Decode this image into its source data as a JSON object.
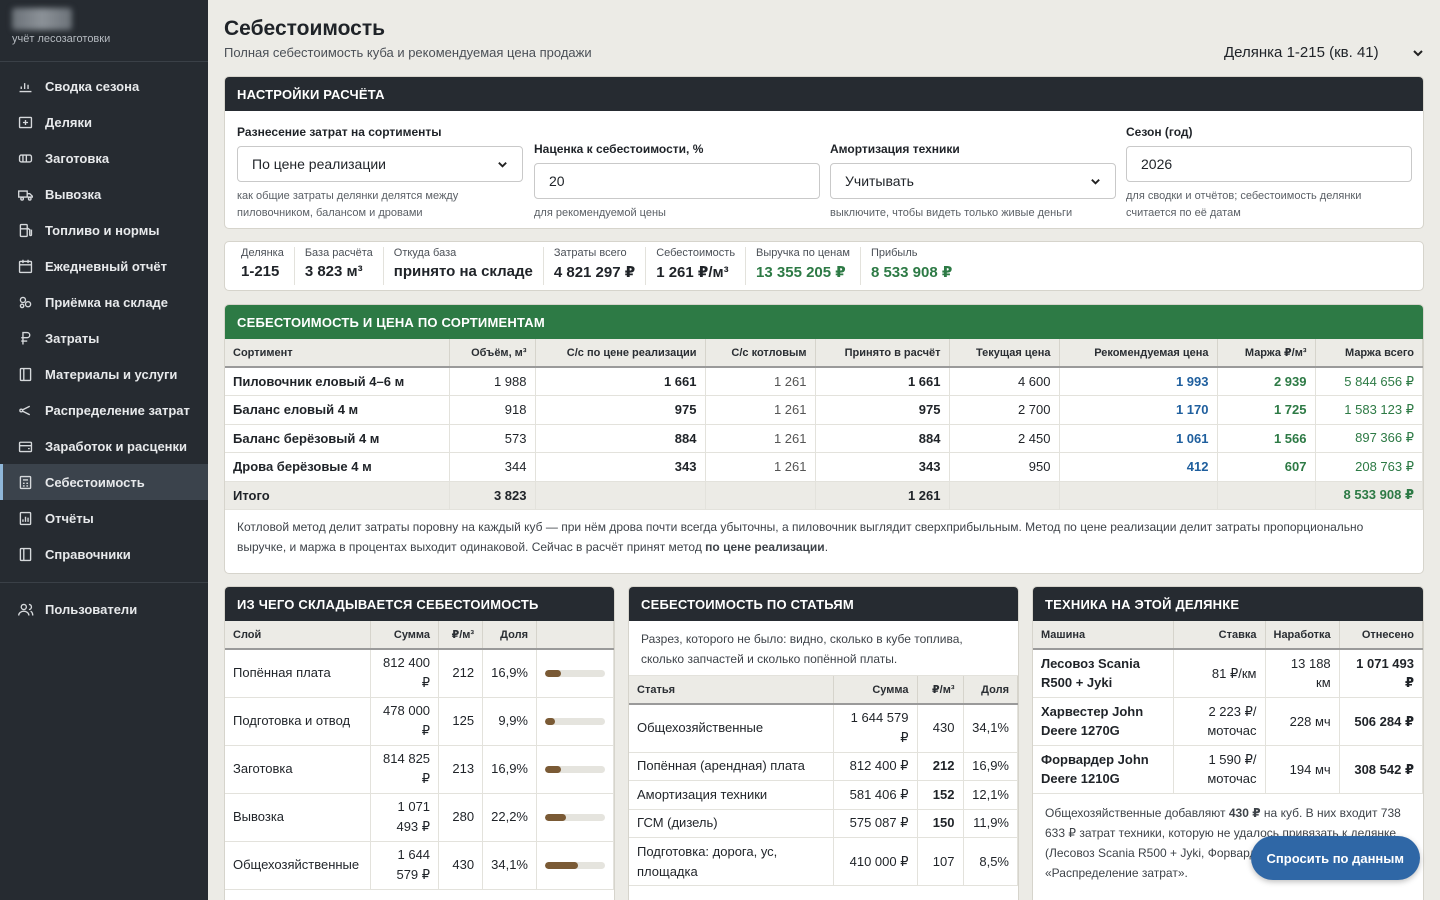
{
  "sidebar": {
    "brand_sub": "учёт лесозаготовки",
    "items": [
      {
        "label": "Сводка сезона",
        "icon": "chart-icon"
      },
      {
        "label": "Деляки",
        "icon": "plot-icon"
      },
      {
        "label": "Заготовка",
        "icon": "harvest-icon"
      },
      {
        "label": "Вывозка",
        "icon": "truck-icon"
      },
      {
        "label": "Топливо и нормы",
        "icon": "fuel-icon"
      },
      {
        "label": "Ежедневный отчёт",
        "icon": "calendar-icon"
      },
      {
        "label": "Приёмка на складе",
        "icon": "warehouse-icon"
      },
      {
        "label": "Затраты",
        "icon": "ruble-icon"
      },
      {
        "label": "Материалы и услуги",
        "icon": "book-icon"
      },
      {
        "label": "Распределение затрат",
        "icon": "share-icon"
      },
      {
        "label": "Заработок и расценки",
        "icon": "wallet-icon"
      },
      {
        "label": "Себестоимость",
        "icon": "calculator-icon"
      },
      {
        "label": "Отчёты",
        "icon": "report-icon"
      },
      {
        "label": "Справочники",
        "icon": "book-icon"
      }
    ],
    "users": "Пользователи"
  },
  "header": {
    "title": "Себестоимость",
    "subtitle": "Полная себестоимость куба и рекомендуемая цена продажи",
    "plot_select": "Делянка 1-215 (кв. 41)"
  },
  "settings": {
    "title": "НАСТРОЙКИ РАСЧЁТА",
    "alloc_label": "Разнесение затрат на сортименты",
    "alloc_value": "По цене реализации",
    "alloc_hint": "как общие затраты делянки делятся между пиловочником, балансом и дровами",
    "markup_label": "Наценка к себестоимости, %",
    "markup_value": "20",
    "markup_hint": "для рекомендуемой цены",
    "amort_label": "Амортизация техники",
    "amort_value": "Учитывать",
    "amort_hint": "выключите, чтобы видеть только живые деньги",
    "season_label": "Сезон (год)",
    "season_value": "2026",
    "season_hint": "для сводки и отчётов; себестоимость делянки считается по её датам"
  },
  "summary": [
    {
      "label": "Делянка",
      "value": "1-215",
      "green": false
    },
    {
      "label": "База расчёта",
      "value": "3 823 м³",
      "green": false
    },
    {
      "label": "Откуда база",
      "value": "принято на складе",
      "green": false
    },
    {
      "label": "Затраты всего",
      "value": "4 821 297 ₽",
      "green": false
    },
    {
      "label": "Себестоимость",
      "value": "1 261 ₽/м³",
      "green": false
    },
    {
      "label": "Выручка по ценам",
      "value": "13 355 205 ₽",
      "green": true
    },
    {
      "label": "Прибыль",
      "value": "8 533 908 ₽",
      "green": true
    }
  ],
  "sortiments": {
    "title": "СЕБЕСТОИМОСТЬ И ЦЕНА ПО СОРТИМЕНТАМ",
    "headers": [
      "Сортимент",
      "Объём, м³",
      "С/с по цене реализации",
      "С/с котловым",
      "Принято в расчёт",
      "Текущая цена",
      "Рекомендуемая цена",
      "Маржа ₽/м³",
      "Маржа всего"
    ],
    "rows": [
      [
        "Пиловочник еловый 4–6 м",
        "1 988",
        "1 661",
        "1 261",
        "1 661",
        "4 600",
        "1 993",
        "2 939",
        "5 844 656 ₽"
      ],
      [
        "Баланс еловый 4 м",
        "918",
        "975",
        "1 261",
        "975",
        "2 700",
        "1 170",
        "1 725",
        "1 583 123 ₽"
      ],
      [
        "Баланс берёзовый 4 м",
        "573",
        "884",
        "1 261",
        "884",
        "2 450",
        "1 061",
        "1 566",
        "897 366 ₽"
      ],
      [
        "Дрова берёзовые 4 м",
        "344",
        "343",
        "1 261",
        "343",
        "950",
        "412",
        "607",
        "208 763 ₽"
      ]
    ],
    "total": [
      "Итого",
      "3 823",
      "",
      "",
      "1 261",
      "",
      "",
      "",
      "8 533 908 ₽"
    ],
    "note": "Котловой метод делит затраты поровну на каждый куб — при нём дрова почти всегда убыточны, а пиловочник выглядит сверхприбыльным. Метод по цене реализации делит затраты пропорционально выручке, и маржа в процентах выходит одинаковой. Сейчас в расчёт принят метод ",
    "note_bold": "по цене реализации",
    "note_end": "."
  },
  "layers": {
    "title": "ИЗ ЧЕГО СКЛАДЫВАЕТСЯ СЕБЕСТОИМОСТЬ",
    "headers": [
      "Слой",
      "Сумма",
      "₽/м³",
      "Доля",
      ""
    ],
    "rows": [
      {
        "name": "Попённая плата",
        "sum": "812 400 ₽",
        "per": "212",
        "share": "16,9%",
        "pct": 16.9
      },
      {
        "name": "Подготовка и отвод",
        "sum": "478 000 ₽",
        "per": "125",
        "share": "9,9%",
        "pct": 9.9
      },
      {
        "name": "Заготовка",
        "sum": "814 825 ₽",
        "per": "213",
        "share": "16,9%",
        "pct": 16.9
      },
      {
        "name": "Вывозка",
        "sum": "1 071 493 ₽",
        "per": "280",
        "share": "22,2%",
        "pct": 22.2
      },
      {
        "name": "Общехозяйственные",
        "sum": "1 644 579 ₽",
        "per": "430",
        "share": "34,1%",
        "pct": 34.1
      }
    ]
  },
  "articles": {
    "title": "СЕБЕСТОИМОСТЬ ПО СТАТЬЯМ",
    "intro": "Разрез, которого не было: видно, сколько в кубе топлива, сколько запчастей и сколько попённой платы.",
    "headers": [
      "Статья",
      "Сумма",
      "₽/м³",
      "Доля"
    ],
    "rows": [
      {
        "name": "Общехозяйственные",
        "sum": "1 644 579 ₽",
        "per": "430",
        "share": "34,1%",
        "tall": true
      },
      {
        "name": "Попённая (арендная) плата",
        "sum": "812 400 ₽",
        "per": "212",
        "share": "16,9%",
        "tall": false
      },
      {
        "name": "Амортизация техники",
        "sum": "581 406 ₽",
        "per": "152",
        "share": "12,1%",
        "tall": false
      },
      {
        "name": "ГСМ (дизель)",
        "sum": "575 087 ₽",
        "per": "150",
        "share": "11,9%",
        "tall": false
      },
      {
        "name": "Подготовка: дорога, ус, площадка",
        "sum": "410 000 ₽",
        "per": "107",
        "share": "8,5%",
        "tall": true
      }
    ]
  },
  "machines": {
    "title": "ТЕХНИКА НА ЭТОЙ ДЕЛЯНКЕ",
    "headers": [
      "Машина",
      "Ставка",
      "Наработка",
      "Отнесено"
    ],
    "rows": [
      {
        "name": "Лесовоз Scania R500 + Jyki",
        "rate": "81 ₽/км",
        "hours": "13 188 км",
        "sum": "1 071 493 ₽"
      },
      {
        "name": "Харвестер John Deere 1270G",
        "rate": "2 223 ₽/ моточас",
        "hours": "228 мч",
        "sum": "506 284 ₽"
      },
      {
        "name": "Форвардер John Deere 1210G",
        "rate": "1 590 ₽/ моточас",
        "hours": "194 мч",
        "sum": "308 542 ₽"
      }
    ],
    "note_a": "Общехозяйственные добавляют ",
    "note_bold": "430 ₽",
    "note_b": " на куб. В них входит 738 633 ₽ затрат техники, которую не удалось привязать к делянке (Лесовоз Scania R500 + Jyki, Форвардер), см. раздел «Распределение затрат»."
  },
  "ask_button": "Спросить по данным"
}
